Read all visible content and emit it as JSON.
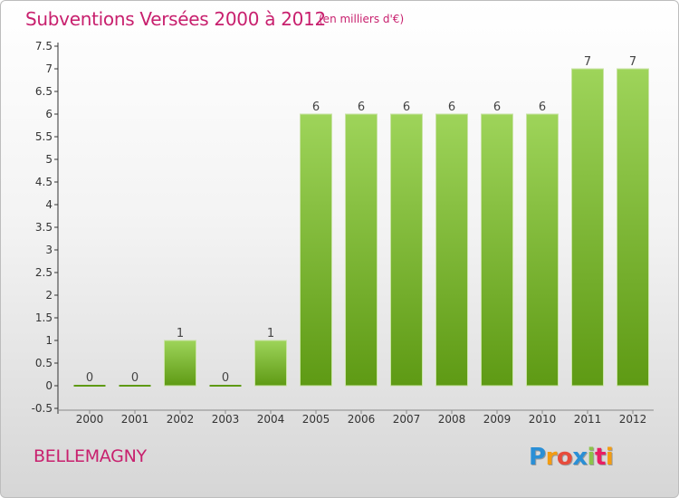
{
  "header": {
    "title": "Subventions Versées 2000 à 2012",
    "unit_note": "(en milliers d'€)"
  },
  "footer": {
    "commune": "BELLEMAGNY",
    "logo_letters": [
      "P",
      "r",
      "o",
      "x",
      "i",
      "t",
      "i"
    ],
    "logo_colors": [
      "#2a8fd6",
      "#f39c12",
      "#e74c3c",
      "#2a8fd6",
      "#8bc34a",
      "#e91e63",
      "#f39c12"
    ]
  },
  "colors": {
    "title": "#c8206e",
    "bar_light": "#9ed45a",
    "bar_dark": "#5e9a14",
    "axis": "#333333",
    "grid": "#cccccc"
  },
  "chart_data": {
    "type": "bar",
    "categories": [
      "2000",
      "2001",
      "2002",
      "2003",
      "2004",
      "2005",
      "2006",
      "2007",
      "2008",
      "2009",
      "2010",
      "2011",
      "2012"
    ],
    "values": [
      0,
      0,
      1,
      0,
      1,
      6,
      6,
      6,
      6,
      6,
      6,
      7,
      7
    ],
    "data_labels": [
      "0",
      "0",
      "1",
      "0",
      "1",
      "6",
      "6",
      "6",
      "6",
      "6",
      "6",
      "7",
      "7"
    ],
    "yticks": [
      "-0.5",
      "0",
      "0.5",
      "1",
      "1.5",
      "2",
      "2.5",
      "3",
      "3.5",
      "4",
      "4.5",
      "5",
      "5.5",
      "6",
      "6.5",
      "7",
      "7.5"
    ],
    "ylim": [
      -0.5,
      7.5
    ],
    "title": "Subventions Versées 2000 à 2012",
    "xlabel": "",
    "ylabel": "",
    "grid": false
  }
}
